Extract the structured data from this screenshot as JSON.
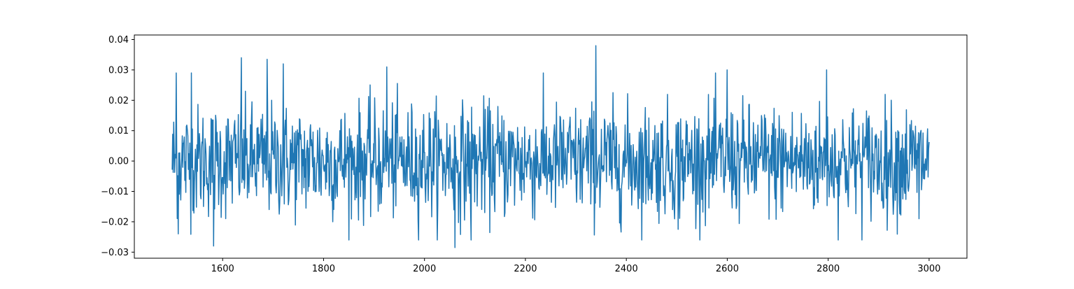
{
  "chart_data": {
    "type": "line",
    "title": "",
    "xlabel": "",
    "ylabel": "",
    "xlim": [
      1425,
      3075
    ],
    "ylim": [
      -0.032,
      0.0415
    ],
    "grid": false,
    "x_ticks": [
      1600,
      1800,
      2000,
      2200,
      2400,
      2600,
      2800,
      3000
    ],
    "x_tick_labels": [
      "1600",
      "1800",
      "2000",
      "2200",
      "2400",
      "2600",
      "2800",
      "3000"
    ],
    "y_ticks": [
      -0.03,
      -0.02,
      -0.01,
      0.0,
      0.01,
      0.02,
      0.03,
      0.04
    ],
    "y_tick_labels": [
      "−0.03",
      "−0.02",
      "−0.01",
      "0.00",
      "0.01",
      "0.02",
      "0.03",
      "0.04"
    ],
    "series": [
      {
        "color": "#1f77b4",
        "x_start": 1500,
        "x_end": 3000,
        "n_points": 1500,
        "noise_std": 0.0092,
        "peaks": [
          {
            "x": 1508,
            "y": 0.029
          },
          {
            "x": 1512,
            "y": -0.024
          },
          {
            "x": 1538,
            "y": 0.029
          },
          {
            "x": 1582,
            "y": -0.028
          },
          {
            "x": 1637,
            "y": 0.034
          },
          {
            "x": 1688,
            "y": 0.0335
          },
          {
            "x": 1720,
            "y": 0.032
          },
          {
            "x": 1925,
            "y": 0.031
          },
          {
            "x": 2060,
            "y": -0.0285
          },
          {
            "x": 2092,
            "y": -0.026
          },
          {
            "x": 2340,
            "y": 0.038
          },
          {
            "x": 2503,
            "y": -0.0225
          },
          {
            "x": 2600,
            "y": 0.03
          },
          {
            "x": 2797,
            "y": 0.03
          },
          {
            "x": 2980,
            "y": -0.019
          }
        ]
      }
    ]
  }
}
